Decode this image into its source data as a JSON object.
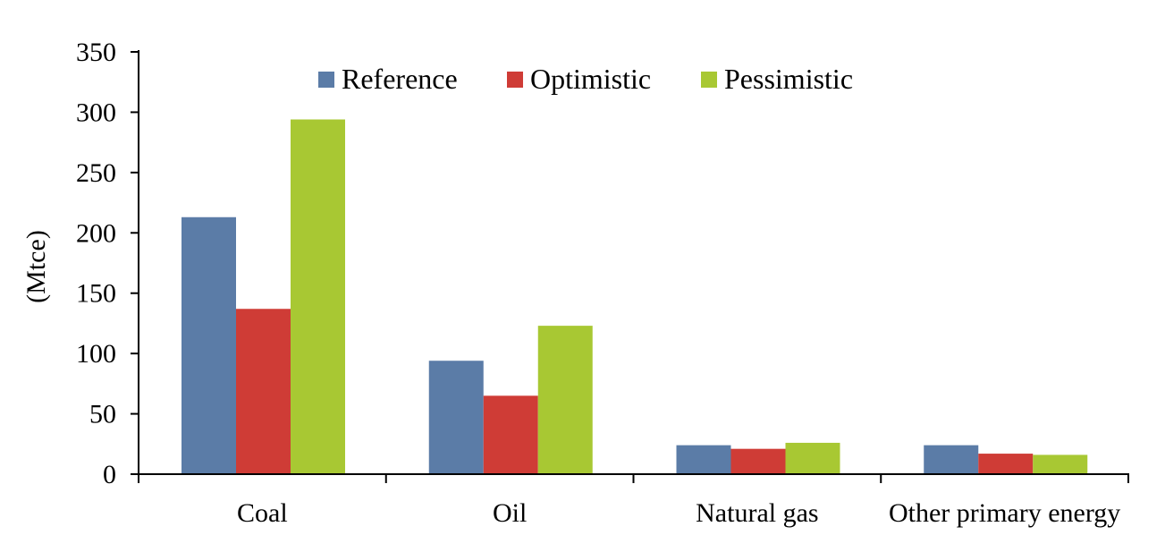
{
  "chart_data": {
    "type": "bar",
    "title": "",
    "xlabel": "",
    "ylabel": "(Mtce)",
    "ylim": [
      0,
      350
    ],
    "yticks": [
      0,
      50,
      100,
      150,
      200,
      250,
      300,
      350
    ],
    "grid": false,
    "legend_position": "top",
    "categories": [
      "Coal",
      "Oil",
      "Natural gas",
      "Other primary energy"
    ],
    "series": [
      {
        "name": "Reference",
        "color": "#5b7ca7",
        "values": [
          213,
          94,
          24,
          24
        ]
      },
      {
        "name": "Optimistic",
        "color": "#cf3c36",
        "values": [
          137,
          65,
          21,
          17
        ]
      },
      {
        "name": "Pessimistic",
        "color": "#a8c833",
        "values": [
          294,
          123,
          26,
          16
        ]
      }
    ]
  }
}
